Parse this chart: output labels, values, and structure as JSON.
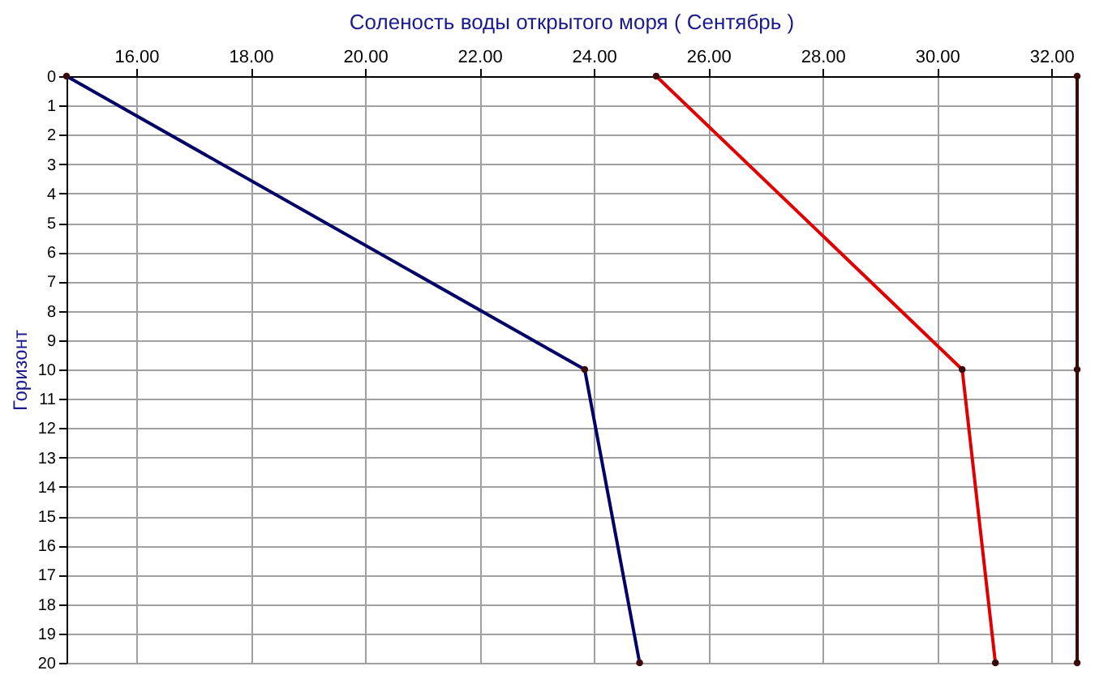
{
  "chart_data": {
    "type": "line",
    "title": "Соленость воды открытого моря    ( Сентябрь )",
    "ylabel": "Горизонт",
    "series": [
      {
        "color": "#000066",
        "x": [
          14.78,
          23.84,
          24.8
        ],
        "values": [
          0,
          10,
          20
        ]
      },
      {
        "color": "#e00000",
        "x": [
          25.09,
          30.44,
          31.02
        ],
        "values": [
          0,
          10,
          20
        ]
      },
      {
        "color": "#3c0a0a",
        "x": [
          32.45,
          32.45,
          32.45
        ],
        "values": [
          0,
          10,
          20
        ]
      }
    ],
    "xlim": [
      14.78,
      32.45
    ],
    "xticks": [
      {
        "value": 16,
        "label": "16.00"
      },
      {
        "value": 18,
        "label": "18.00"
      },
      {
        "value": 20,
        "label": "20.00"
      },
      {
        "value": 22,
        "label": "22.00"
      },
      {
        "value": 24,
        "label": "24.00"
      },
      {
        "value": 26,
        "label": "26.00"
      },
      {
        "value": 28,
        "label": "28.00"
      },
      {
        "value": 30,
        "label": "30.00"
      },
      {
        "value": 32,
        "label": "32.00"
      }
    ],
    "ylim": [
      20,
      0
    ],
    "yticks": [
      0,
      1,
      2,
      3,
      4,
      5,
      6,
      7,
      8,
      9,
      10,
      11,
      12,
      13,
      14,
      15,
      16,
      17,
      18,
      19,
      20
    ],
    "grid": true,
    "marker": "circle",
    "line_style": "solid"
  }
}
